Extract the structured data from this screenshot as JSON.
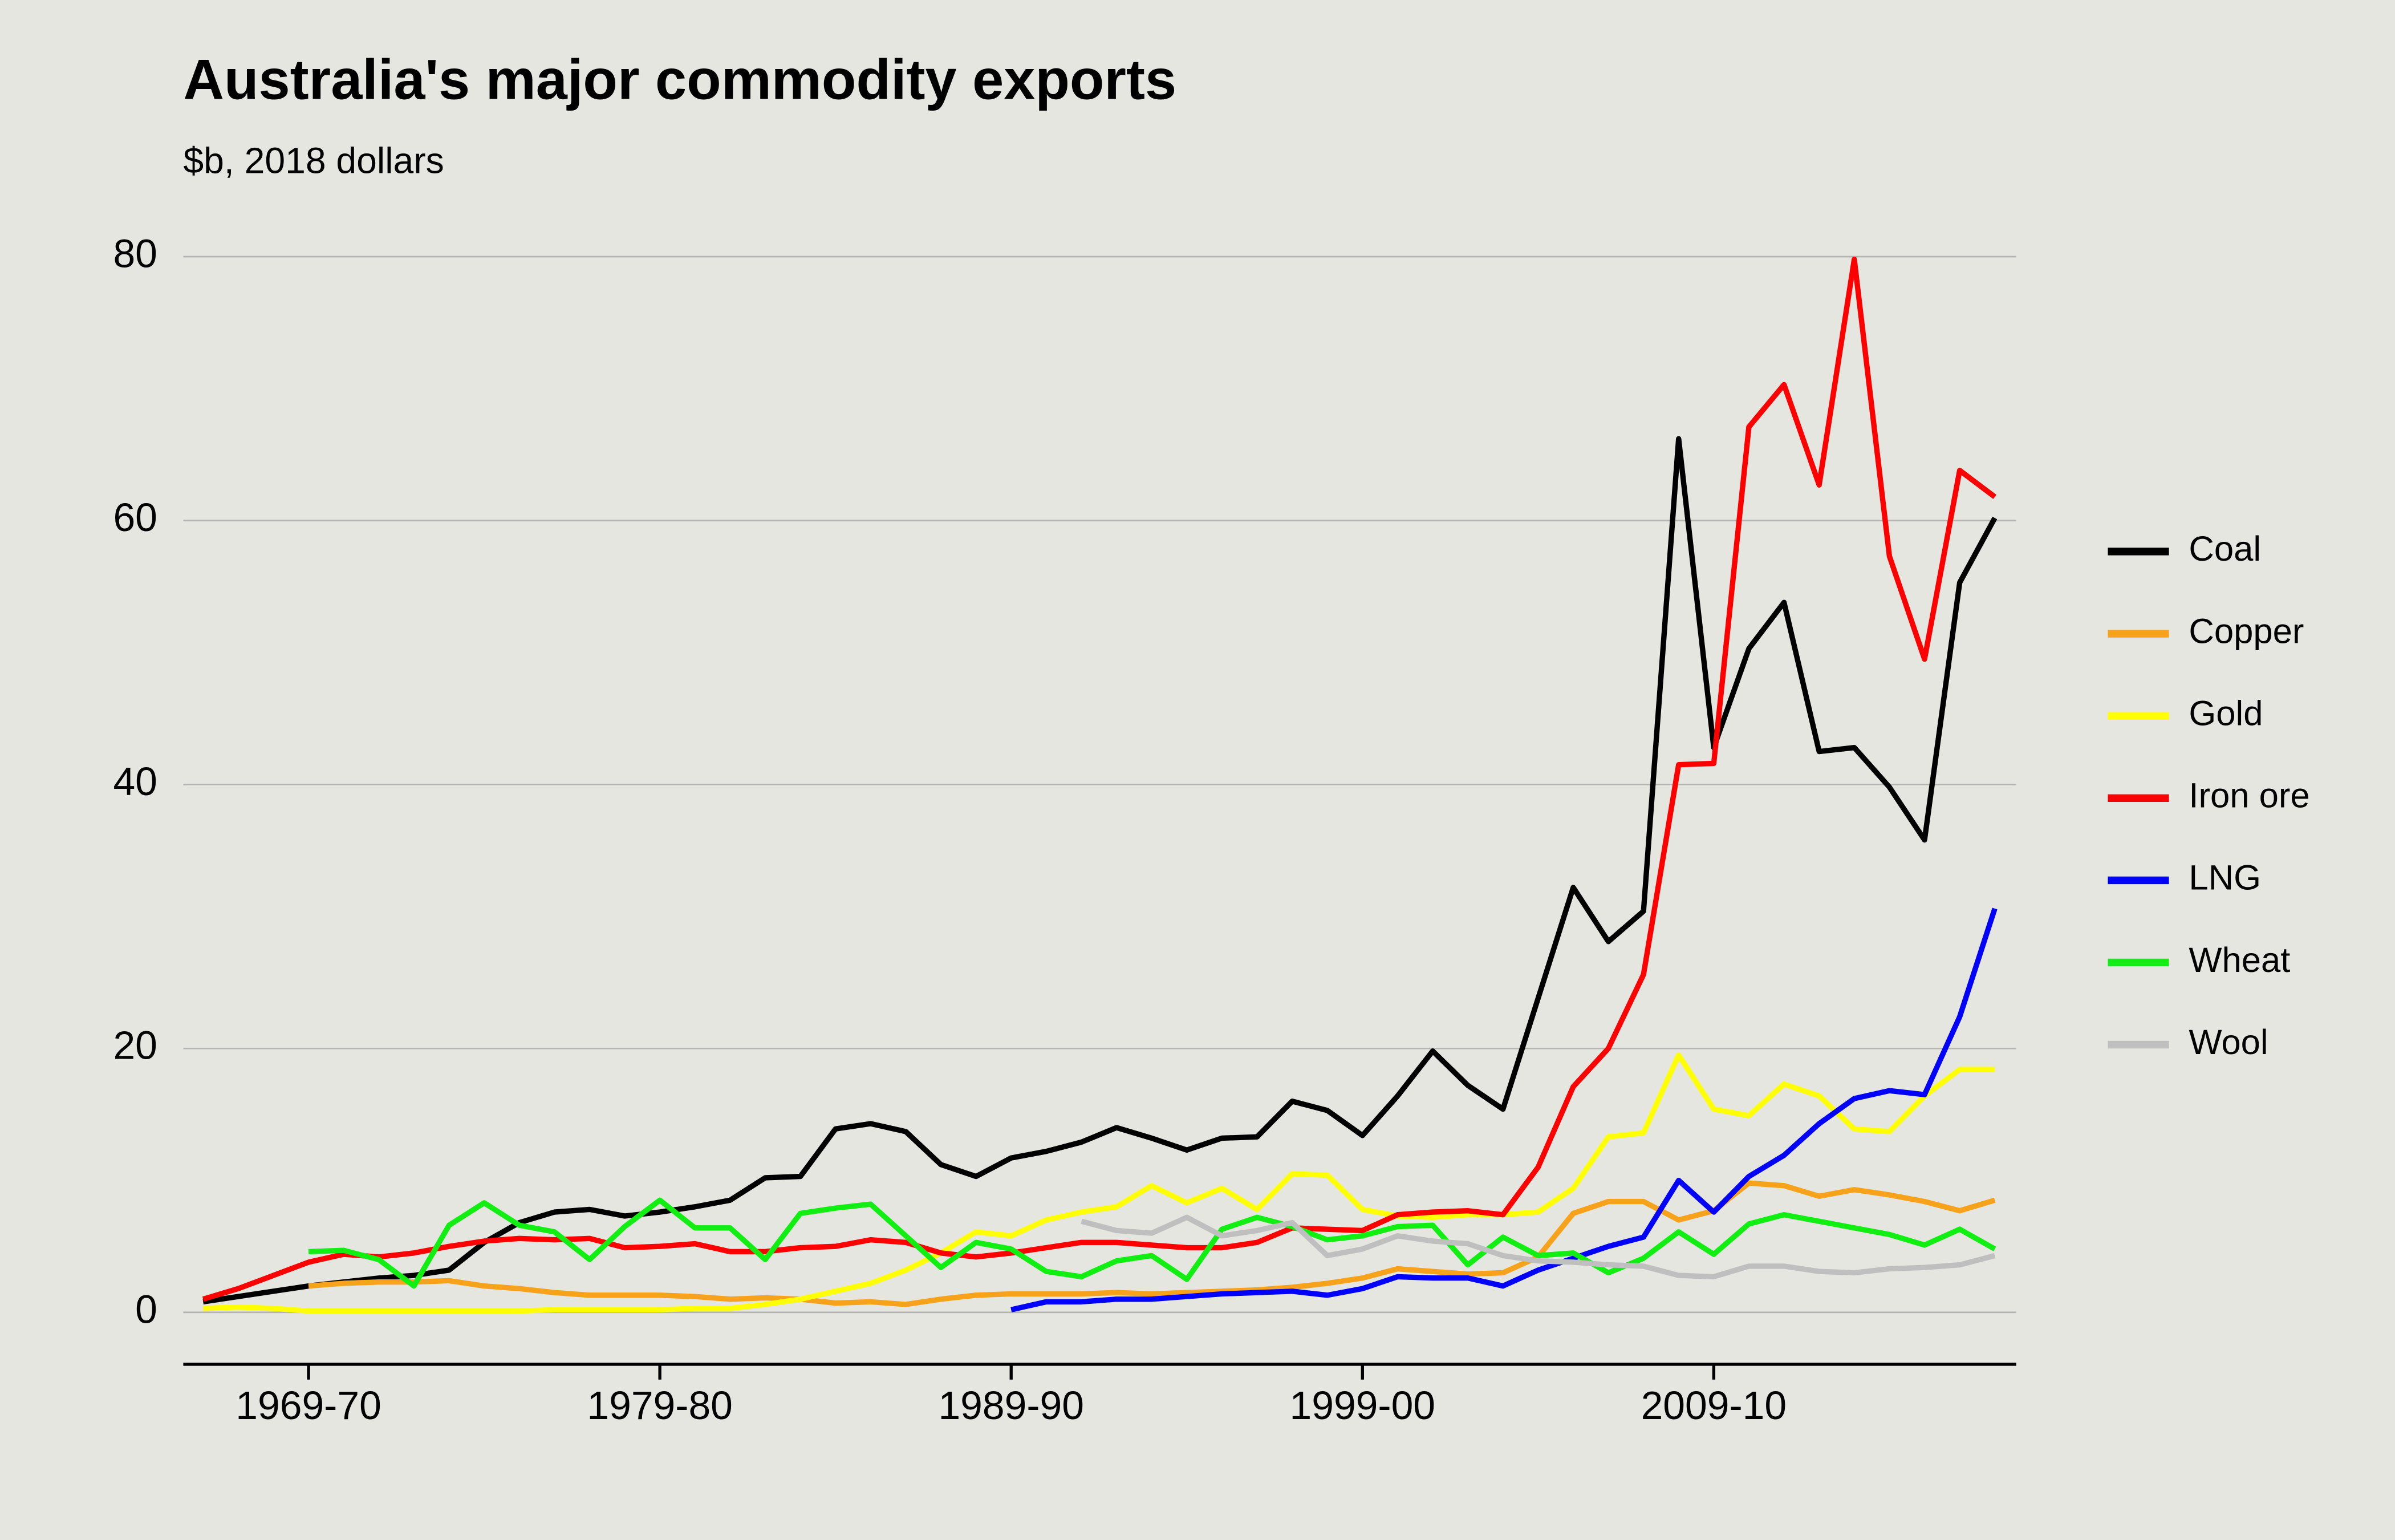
{
  "chart_data": {
    "type": "line",
    "title": "Australia's major commodity exports",
    "subtitle": "$b, 2018 dollars",
    "categories": [
      null,
      null,
      null,
      "1969-70",
      null,
      null,
      null,
      null,
      null,
      null,
      null,
      null,
      null,
      "1979-80",
      null,
      null,
      null,
      null,
      null,
      null,
      null,
      null,
      null,
      "1989-90",
      null,
      null,
      null,
      null,
      null,
      null,
      null,
      null,
      null,
      "1999-00",
      null,
      null,
      null,
      null,
      null,
      null,
      null,
      null,
      null,
      "2009-10",
      null,
      null,
      null,
      null,
      null,
      null,
      null,
      null
    ],
    "ylim": [
      0,
      80
    ],
    "yticks": [
      0,
      20,
      40,
      60,
      80
    ],
    "grid": true,
    "legend": "right",
    "series": [
      {
        "name": "Coal",
        "color": "#000000",
        "values": [
          0.8,
          1.2,
          1.6,
          2.0,
          2.3,
          2.6,
          2.8,
          3.2,
          5.3,
          6.8,
          7.6,
          7.8,
          7.3,
          7.6,
          8.0,
          8.5,
          10.2,
          10.3,
          13.9,
          14.3,
          13.7,
          11.2,
          10.3,
          11.7,
          12.2,
          12.9,
          14.0,
          13.2,
          12.3,
          13.2,
          13.3,
          16.0,
          15.3,
          13.4,
          16.4,
          19.8,
          17.2,
          15.4,
          23.8,
          32.2,
          28.1,
          30.4,
          66.2,
          42.8,
          50.3,
          53.8,
          42.5,
          42.8,
          39.8,
          35.8,
          55.3,
          60.2
        ]
      },
      {
        "name": "Copper",
        "color": "#f7a21b",
        "values": [
          null,
          null,
          null,
          2.0,
          2.2,
          2.3,
          2.3,
          2.4,
          2.0,
          1.8,
          1.5,
          1.3,
          1.3,
          1.3,
          1.2,
          1.0,
          1.1,
          1.0,
          0.7,
          0.8,
          0.6,
          1.0,
          1.3,
          1.4,
          1.4,
          1.4,
          1.5,
          1.4,
          1.5,
          1.6,
          1.7,
          1.9,
          2.2,
          2.6,
          3.3,
          3.1,
          2.9,
          3.0,
          4.2,
          7.5,
          8.4,
          8.4,
          7.0,
          7.7,
          9.8,
          9.6,
          8.8,
          9.3,
          8.9,
          8.4,
          7.7,
          8.5
        ]
      },
      {
        "name": "Gold",
        "color": "#ffff00",
        "values": [
          0.3,
          0.4,
          0.3,
          0.1,
          0.1,
          0.1,
          0.1,
          0.1,
          0.1,
          0.1,
          0.2,
          0.2,
          0.2,
          0.2,
          0.3,
          0.3,
          0.6,
          1.0,
          1.6,
          2.2,
          3.2,
          4.5,
          6.1,
          5.8,
          7.0,
          7.6,
          8.0,
          9.6,
          8.3,
          9.4,
          7.8,
          10.5,
          10.4,
          7.8,
          7.3,
          7.2,
          7.4,
          7.4,
          7.6,
          9.4,
          13.3,
          13.6,
          19.5,
          15.4,
          14.9,
          17.3,
          16.4,
          13.9,
          13.7,
          16.4,
          18.4,
          18.4
        ]
      },
      {
        "name": "Iron ore",
        "color": "#ff0000",
        "values": [
          1.0,
          1.8,
          2.8,
          3.8,
          4.4,
          4.2,
          4.5,
          5.0,
          5.4,
          5.6,
          5.5,
          5.6,
          4.9,
          5.0,
          5.2,
          4.6,
          4.6,
          4.9,
          5.0,
          5.5,
          5.3,
          4.5,
          4.2,
          4.5,
          4.9,
          5.3,
          5.3,
          5.1,
          4.9,
          4.9,
          5.3,
          6.4,
          6.3,
          6.2,
          7.4,
          7.6,
          7.7,
          7.4,
          11.0,
          17.1,
          20.0,
          25.6,
          41.5,
          41.6,
          67.1,
          70.3,
          62.7,
          79.8,
          57.3,
          49.5,
          63.8,
          61.8
        ]
      },
      {
        "name": "LNG",
        "color": "#0000ff",
        "values": [
          null,
          null,
          null,
          null,
          null,
          null,
          null,
          null,
          null,
          null,
          null,
          null,
          null,
          null,
          null,
          null,
          null,
          null,
          null,
          null,
          null,
          null,
          null,
          0.2,
          0.8,
          0.8,
          1.0,
          1.0,
          1.2,
          1.4,
          1.5,
          1.6,
          1.3,
          1.8,
          2.7,
          2.6,
          2.6,
          2.0,
          3.2,
          4.1,
          5.0,
          5.7,
          10.0,
          7.6,
          10.3,
          11.9,
          14.3,
          16.2,
          16.8,
          16.5,
          22.4,
          30.6
        ]
      },
      {
        "name": "Wheat",
        "color": "#11ee11",
        "values": [
          null,
          null,
          null,
          4.6,
          4.7,
          4.0,
          2.0,
          6.6,
          8.3,
          6.6,
          6.1,
          4.0,
          6.5,
          8.5,
          6.4,
          6.4,
          4.0,
          7.5,
          7.9,
          8.2,
          5.8,
          3.4,
          5.3,
          4.8,
          3.1,
          2.7,
          3.9,
          4.3,
          2.5,
          6.3,
          7.2,
          6.5,
          5.5,
          5.8,
          6.5,
          6.6,
          3.6,
          5.7,
          4.3,
          4.5,
          3.0,
          4.1,
          6.1,
          4.4,
          6.7,
          7.4,
          6.9,
          6.4,
          5.9,
          5.1,
          6.3,
          4.8
        ]
      },
      {
        "name": "Wool",
        "color": "#bfbfbf",
        "values": [
          null,
          null,
          null,
          null,
          null,
          null,
          null,
          null,
          null,
          null,
          null,
          null,
          null,
          null,
          null,
          null,
          null,
          null,
          null,
          null,
          null,
          null,
          null,
          null,
          null,
          6.9,
          6.2,
          6.0,
          7.2,
          5.8,
          6.2,
          6.8,
          4.3,
          4.8,
          5.8,
          5.4,
          5.2,
          4.3,
          3.9,
          3.8,
          3.6,
          3.5,
          2.8,
          2.7,
          3.5,
          3.5,
          3.1,
          3.0,
          3.3,
          3.4,
          3.6,
          4.3
        ]
      }
    ]
  }
}
